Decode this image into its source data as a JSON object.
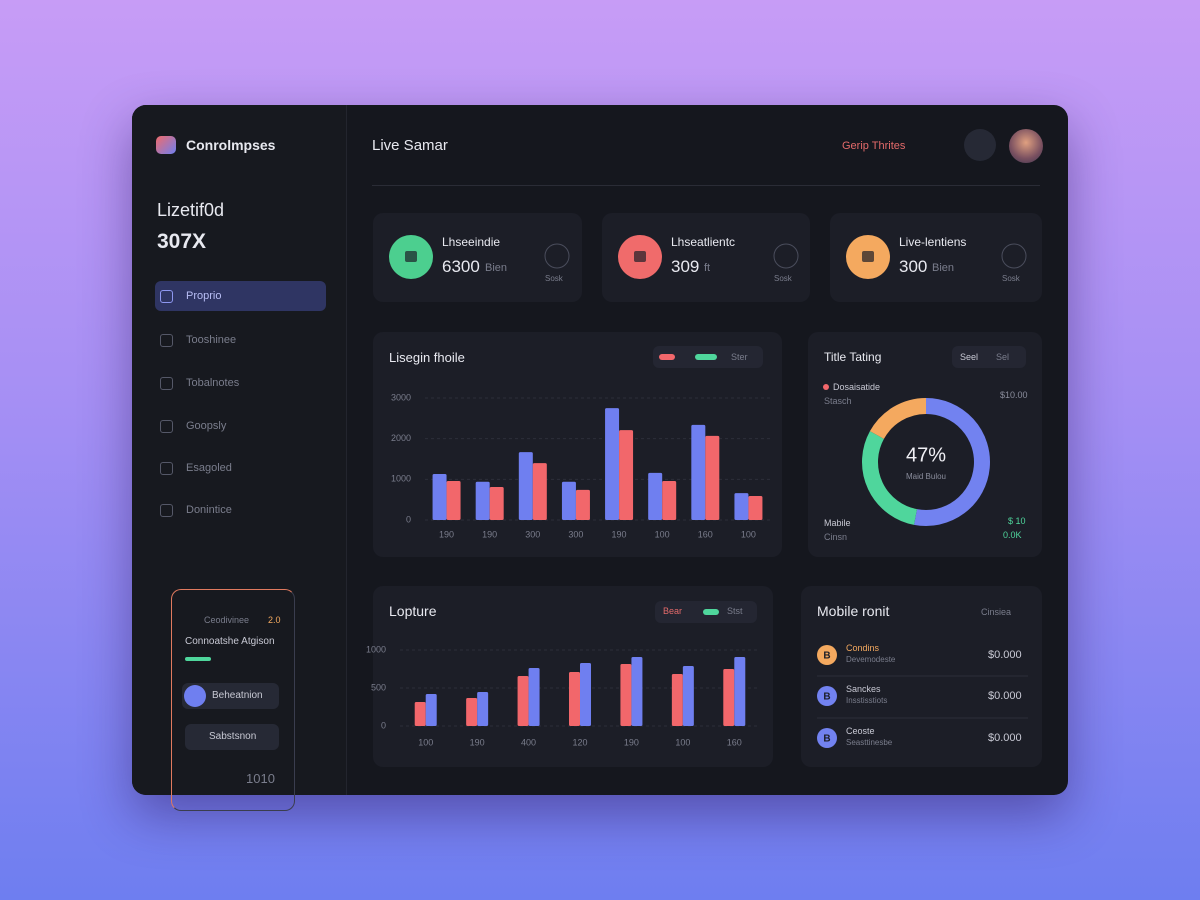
{
  "brand": "Conrolmpses",
  "header": {
    "title": "Live Samar",
    "link": "Gerip Thrites"
  },
  "sidebar": {
    "stat_label": "Lizetif0d",
    "stat_value": "307X",
    "nav": [
      "Proprio",
      "Tooshinee",
      "Tobalnotes",
      "Goopsly",
      "Esagoled",
      "Donintice"
    ],
    "promo": {
      "title": "Ceodivinee",
      "badge": "2.0",
      "text": "Connoatshe Atgison",
      "button_primary": "Beheatnion",
      "button_secondary": "Sabstsnon",
      "footer": "1010"
    }
  },
  "kpis": [
    {
      "label": "Lhseeindie",
      "value": "6300",
      "unit": "Bien",
      "caption": "Sosk",
      "color": "#4ccf8f"
    },
    {
      "label": "Lhseatlientc",
      "value": "309",
      "unit": "ft",
      "caption": "Sosk",
      "color": "#f06b6b"
    },
    {
      "label": "Live-lentiens",
      "value": "300",
      "unit": "Bien",
      "caption": "Sosk",
      "color": "#f4a95f"
    }
  ],
  "bar_chart": {
    "type": "bar",
    "title": "Lisegin fhoile",
    "legend_label": "Ster",
    "categories": [
      "190",
      "190",
      "300",
      "300",
      "190",
      "100",
      "160",
      "100"
    ],
    "series": [
      {
        "color": "#6f7ff0",
        "values": [
          1130,
          940,
          1670,
          940,
          2750,
          1160,
          2340,
          660
        ]
      },
      {
        "color": "#f2676b",
        "values": [
          960,
          810,
          1400,
          740,
          2210,
          960,
          2070,
          590
        ]
      }
    ],
    "ylim": [
      0,
      3000
    ],
    "yticks": [
      0,
      1000,
      2000,
      3000
    ],
    "grid": true
  },
  "donut_chart": {
    "type": "pie",
    "title": "Title Tating",
    "toggle": [
      "Seel",
      "Sel"
    ],
    "center_label": "47%",
    "center_sub": "Maid Bulou",
    "values": [
      53,
      30,
      17
    ],
    "colors": [
      "#7282f0",
      "#4fd69c",
      "#f4a95f"
    ],
    "legend": [
      "Dosaisatide",
      "Stasch",
      "$10.00",
      "Mabile",
      "Cinsn",
      "$ 10",
      "0.0K"
    ]
  },
  "bar_chart_2": {
    "type": "bar",
    "title": "Lopture",
    "legend": [
      "Bear",
      "Stst"
    ],
    "categories": [
      "100",
      "190",
      "400",
      "120",
      "190",
      "100",
      "160"
    ],
    "series": [
      {
        "color": "#f2676b",
        "values": [
          316,
          368,
          658,
          711,
          816,
          684,
          750
        ]
      },
      {
        "color": "#6f7ff0",
        "values": [
          421,
          447,
          763,
          829,
          908,
          789,
          908
        ]
      }
    ],
    "ylim": [
      0,
      1000
    ],
    "yticks": [
      0,
      500,
      1000
    ],
    "grid": true
  },
  "mobile": {
    "title": "Mobile ronit",
    "link": "Cinsiea",
    "items": [
      {
        "icon": "B",
        "name": "Condins",
        "sub": "Devemodeste",
        "amount": "$0.000",
        "color": "#f4a95f"
      },
      {
        "icon": "B",
        "name": "Sanckes",
        "sub": "Insstisstiots",
        "amount": "$0.000",
        "color": "#7282f0"
      },
      {
        "icon": "B",
        "name": "Ceoste",
        "sub": "Seasttinesbe",
        "amount": "$0.000",
        "color": "#7282f0"
      }
    ]
  }
}
